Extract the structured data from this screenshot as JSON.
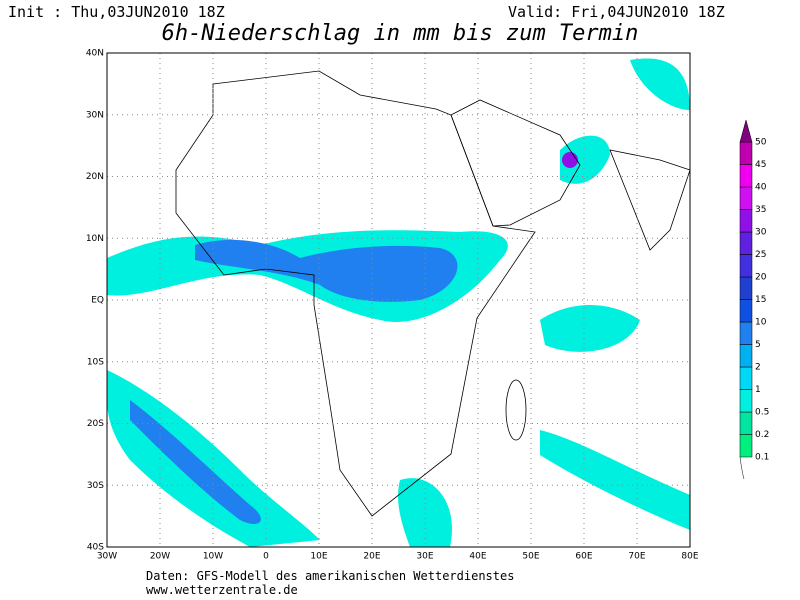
{
  "header": {
    "init": "Init : Thu,03JUN2010 18Z",
    "valid": "Valid: Fri,04JUN2010 18Z",
    "title": "6h-Niederschlag in mm bis zum Termin"
  },
  "map": {
    "lon_labels": [
      "30W",
      "20W",
      "10W",
      "0",
      "10E",
      "20E",
      "30E",
      "40E",
      "50E",
      "60E",
      "70E",
      "80E"
    ],
    "lat_labels": [
      "40N",
      "30N",
      "20N",
      "10N",
      "EQ",
      "10S",
      "20S",
      "30S",
      "40S"
    ]
  },
  "colorbar": {
    "labels": [
      "0.1",
      "0.2",
      "0.5",
      "1",
      "2",
      "5",
      "10",
      "15",
      "20",
      "25",
      "30",
      "35",
      "40",
      "45",
      "50"
    ],
    "colors": [
      "#00f080",
      "#00e6a0",
      "#00f0e0",
      "#00d8f8",
      "#00b0f0",
      "#2080f0",
      "#1050e0",
      "#2040d0",
      "#4030e0",
      "#6020e0",
      "#9010e8",
      "#d010f0",
      "#f000f0",
      "#c000b0",
      "#800080"
    ]
  },
  "footer": {
    "line1": "Daten: GFS-Modell des amerikanischen Wetterdienstes",
    "line2": "www.wetterzentrale.de"
  }
}
